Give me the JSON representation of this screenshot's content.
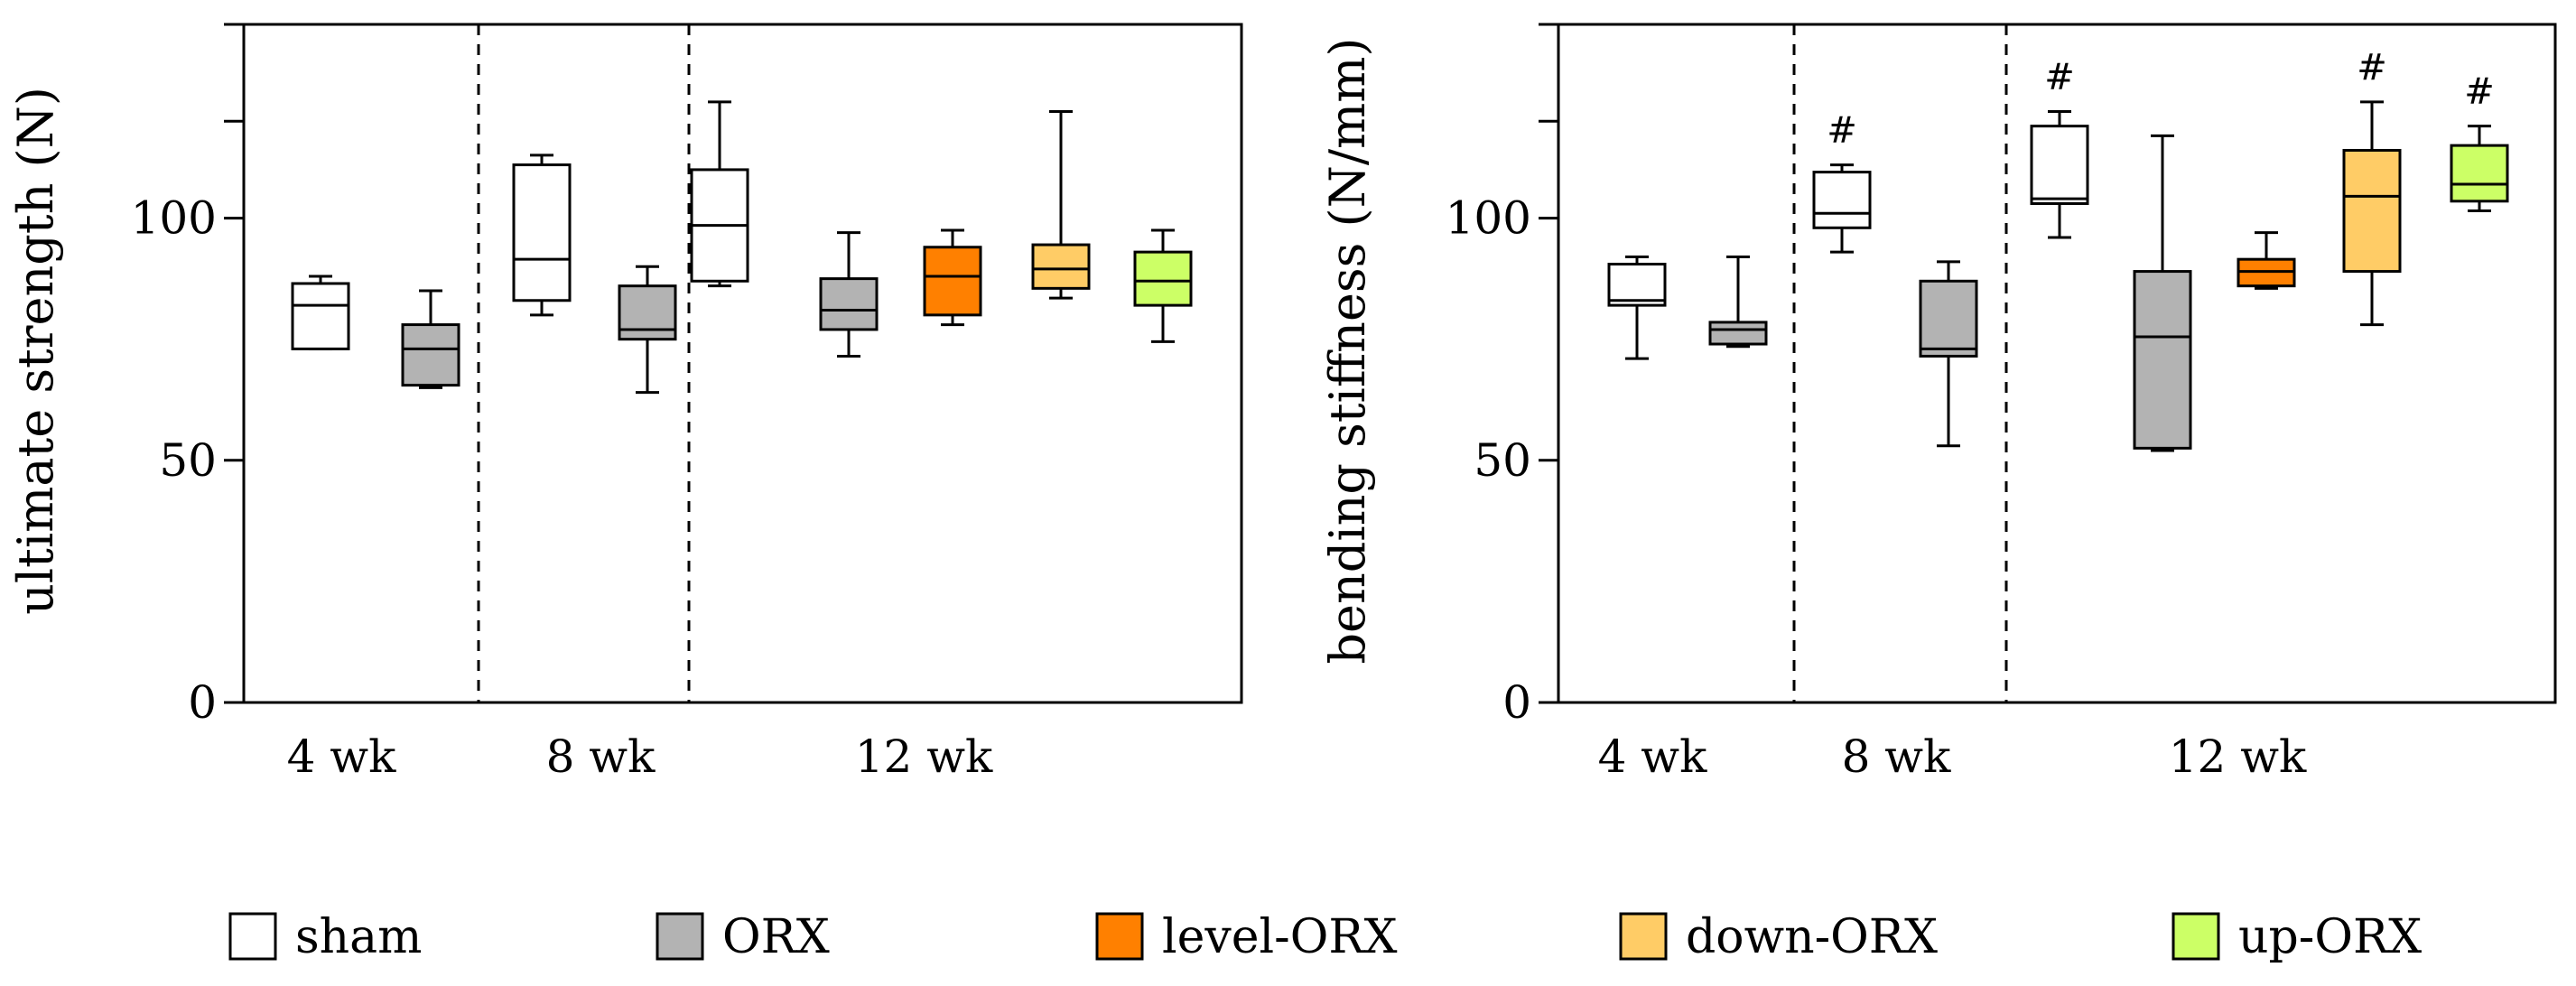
{
  "legend": [
    {
      "label": "sham",
      "color": "#ffffff"
    },
    {
      "label": "ORX",
      "color": "#b3b3b3"
    },
    {
      "label": "level-ORX",
      "color": "#ff8000"
    },
    {
      "label": "down-ORX",
      "color": "#ffcc66"
    },
    {
      "label": "up-ORX",
      "color": "#ccff66"
    }
  ],
  "chart_data": [
    {
      "type": "box",
      "ylabel": "ultimate strength (N)",
      "ylim": [
        0,
        140
      ],
      "yticks": [
        0,
        50,
        100
      ],
      "groups": [
        "4 wk",
        "8 wk",
        "12 wk"
      ],
      "boxes": [
        {
          "group": "4 wk",
          "series": "sham",
          "min": 73,
          "q1": 73,
          "median": 82,
          "q3": 86.5,
          "max": 88
        },
        {
          "group": "4 wk",
          "series": "ORX",
          "min": 65,
          "q1": 65.5,
          "median": 73,
          "q3": 78,
          "max": 85
        },
        {
          "group": "8 wk",
          "series": "sham",
          "min": 80,
          "q1": 83,
          "median": 91.5,
          "q3": 111,
          "max": 113
        },
        {
          "group": "8 wk",
          "series": "ORX",
          "min": 64,
          "q1": 75,
          "median": 77,
          "q3": 86,
          "max": 90
        },
        {
          "group": "12 wk",
          "series": "sham",
          "min": 86,
          "q1": 87,
          "median": 98.5,
          "q3": 110,
          "max": 124
        },
        {
          "group": "12 wk",
          "series": "ORX",
          "min": 71.5,
          "q1": 77,
          "median": 81,
          "q3": 87.5,
          "max": 97
        },
        {
          "group": "12 wk",
          "series": "level-ORX",
          "min": 78,
          "q1": 80,
          "median": 88,
          "q3": 94,
          "max": 97.5
        },
        {
          "group": "12 wk",
          "series": "down-ORX",
          "min": 83.5,
          "q1": 85.5,
          "median": 89.5,
          "q3": 94.5,
          "max": 122
        },
        {
          "group": "12 wk",
          "series": "up-ORX",
          "min": 74.5,
          "q1": 82,
          "median": 87,
          "q3": 93,
          "max": 97.5
        }
      ],
      "annotations": []
    },
    {
      "type": "box",
      "ylabel": "bending stiffness (N/mm)",
      "ylim": [
        0,
        140
      ],
      "yticks": [
        0,
        50,
        100
      ],
      "groups": [
        "4 wk",
        "8 wk",
        "12 wk"
      ],
      "boxes": [
        {
          "group": "4 wk",
          "series": "sham",
          "min": 71,
          "q1": 82,
          "median": 83,
          "q3": 90.5,
          "max": 92
        },
        {
          "group": "4 wk",
          "series": "ORX",
          "min": 73.5,
          "q1": 74,
          "median": 77,
          "q3": 78.5,
          "max": 92
        },
        {
          "group": "8 wk",
          "series": "sham",
          "min": 93,
          "q1": 98,
          "median": 101,
          "q3": 109.5,
          "max": 111
        },
        {
          "group": "8 wk",
          "series": "ORX",
          "min": 53,
          "q1": 71.5,
          "median": 73,
          "q3": 87,
          "max": 91
        },
        {
          "group": "12 wk",
          "series": "sham",
          "min": 96,
          "q1": 103,
          "median": 104,
          "q3": 119,
          "max": 122
        },
        {
          "group": "12 wk",
          "series": "ORX",
          "min": 52,
          "q1": 52.5,
          "median": 75.5,
          "q3": 89,
          "max": 117
        },
        {
          "group": "12 wk",
          "series": "level-ORX",
          "min": 85.5,
          "q1": 86,
          "median": 89,
          "q3": 91.5,
          "max": 97
        },
        {
          "group": "12 wk",
          "series": "down-ORX",
          "min": 78,
          "q1": 89,
          "median": 104.5,
          "q3": 114,
          "max": 124
        },
        {
          "group": "12 wk",
          "series": "up-ORX",
          "min": 101.5,
          "q1": 103.5,
          "median": 107,
          "q3": 115,
          "max": 119
        }
      ],
      "annotations": [
        {
          "box": 2,
          "text": "#"
        },
        {
          "box": 4,
          "text": "#"
        },
        {
          "box": 7,
          "text": "#"
        },
        {
          "box": 8,
          "text": "#"
        }
      ]
    }
  ]
}
